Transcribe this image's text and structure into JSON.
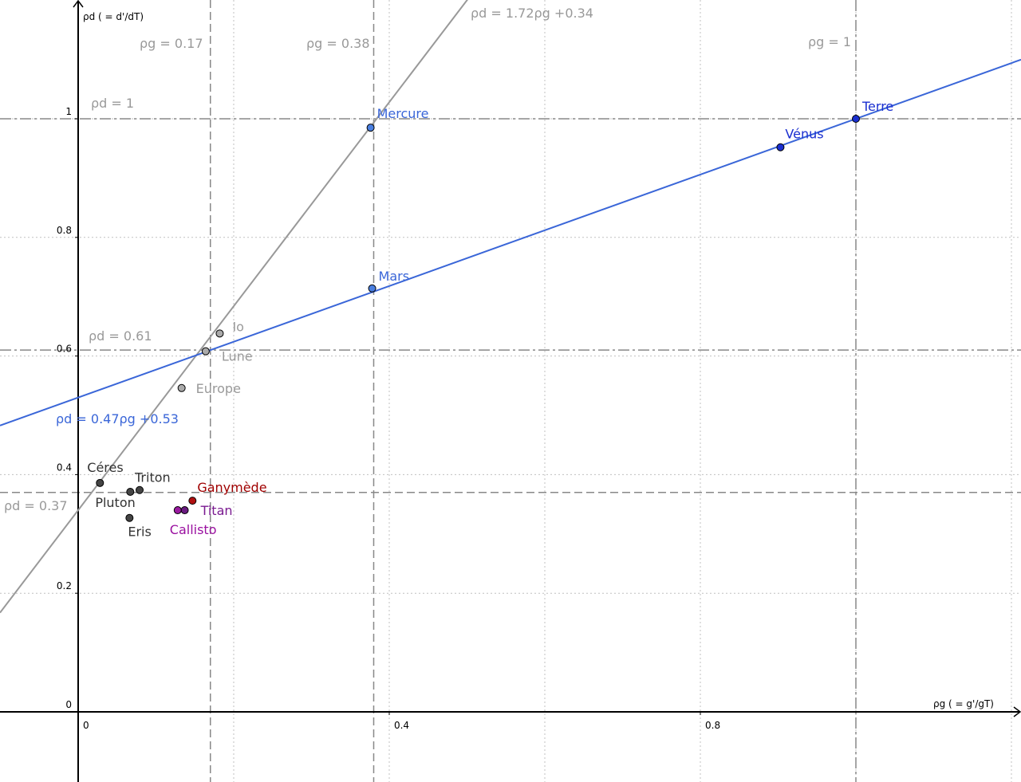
{
  "chart_data": {
    "type": "scatter",
    "xlabel": "ρg ( = g'/gT)",
    "ylabel": "ρd ( = d'/dT)",
    "xlim": [
      -0.1005,
      1.2123
    ],
    "ylim": [
      -0.1183,
      1.2003
    ],
    "xticks": [
      0,
      0.4,
      0.8
    ],
    "yticks": [
      0,
      0.2,
      0.4,
      0.6,
      0.8,
      1
    ],
    "xgrid": [
      0.2,
      0.4,
      0.6,
      0.8,
      1,
      1.2
    ],
    "grid": true,
    "lines": [
      {
        "label": "ρd = 1.72ρg +0.34",
        "slope": 1.72,
        "intercept": 0.34,
        "color": "#999999"
      },
      {
        "label": "ρd = 0.47ρg +0.53",
        "slope": 0.47,
        "intercept": 0.53,
        "color": "#3a66d8"
      }
    ],
    "vlines": [
      {
        "label": "ρg = 0.17",
        "value": 0.17
      },
      {
        "label": "ρg = 0.38",
        "value": 0.38
      },
      {
        "label": "ρg = 1",
        "value": 1
      }
    ],
    "hlines": [
      {
        "label": "ρd = 1",
        "value": 1
      },
      {
        "label": "ρd = 0.61",
        "value": 0.61
      },
      {
        "label": "ρd = 0.37",
        "value": 0.37
      }
    ],
    "points": [
      {
        "label": "Mercure",
        "x": 0.376,
        "y": 0.985,
        "color": "#4a7fe0",
        "text_color": "#3a66d8"
      },
      {
        "label": "Mars",
        "x": 0.378,
        "y": 0.714,
        "color": "#4a7fe0",
        "text_color": "#3a66d8"
      },
      {
        "label": "Vénus",
        "x": 0.903,
        "y": 0.952,
        "color": "#1a2fd0",
        "text_color": "#1a2fd0"
      },
      {
        "label": "Terre",
        "x": 1.0,
        "y": 1.0,
        "color": "#1a2fd0",
        "text_color": "#1a2fd0"
      },
      {
        "label": "Io",
        "x": 0.182,
        "y": 0.638,
        "color": "#aaaaaa",
        "text_color": "#999999"
      },
      {
        "label": "Lune",
        "x": 0.164,
        "y": 0.608,
        "color": "#aaaaaa",
        "text_color": "#999999"
      },
      {
        "label": "Europe",
        "x": 0.133,
        "y": 0.546,
        "color": "#aaaaaa",
        "text_color": "#999999"
      },
      {
        "label": "Céres",
        "x": 0.028,
        "y": 0.386,
        "color": "#444444",
        "text_color": "#333333"
      },
      {
        "label": "Triton",
        "x": 0.079,
        "y": 0.374,
        "color": "#444444",
        "text_color": "#333333"
      },
      {
        "label": "Pluton",
        "x": 0.067,
        "y": 0.371,
        "color": "#444444",
        "text_color": "#333333"
      },
      {
        "label": "Eris",
        "x": 0.066,
        "y": 0.327,
        "color": "#444444",
        "text_color": "#333333"
      },
      {
        "label": "Ganymède",
        "x": 0.147,
        "y": 0.356,
        "color": "#b01010",
        "text_color": "#a00000"
      },
      {
        "label": "Titan",
        "x": 0.137,
        "y": 0.34,
        "color": "#6a1a80",
        "text_color": "#7a1a90"
      },
      {
        "label": "Callisto",
        "x": 0.128,
        "y": 0.34,
        "color": "#9a1aa0",
        "text_color": "#9a10a0"
      }
    ]
  }
}
